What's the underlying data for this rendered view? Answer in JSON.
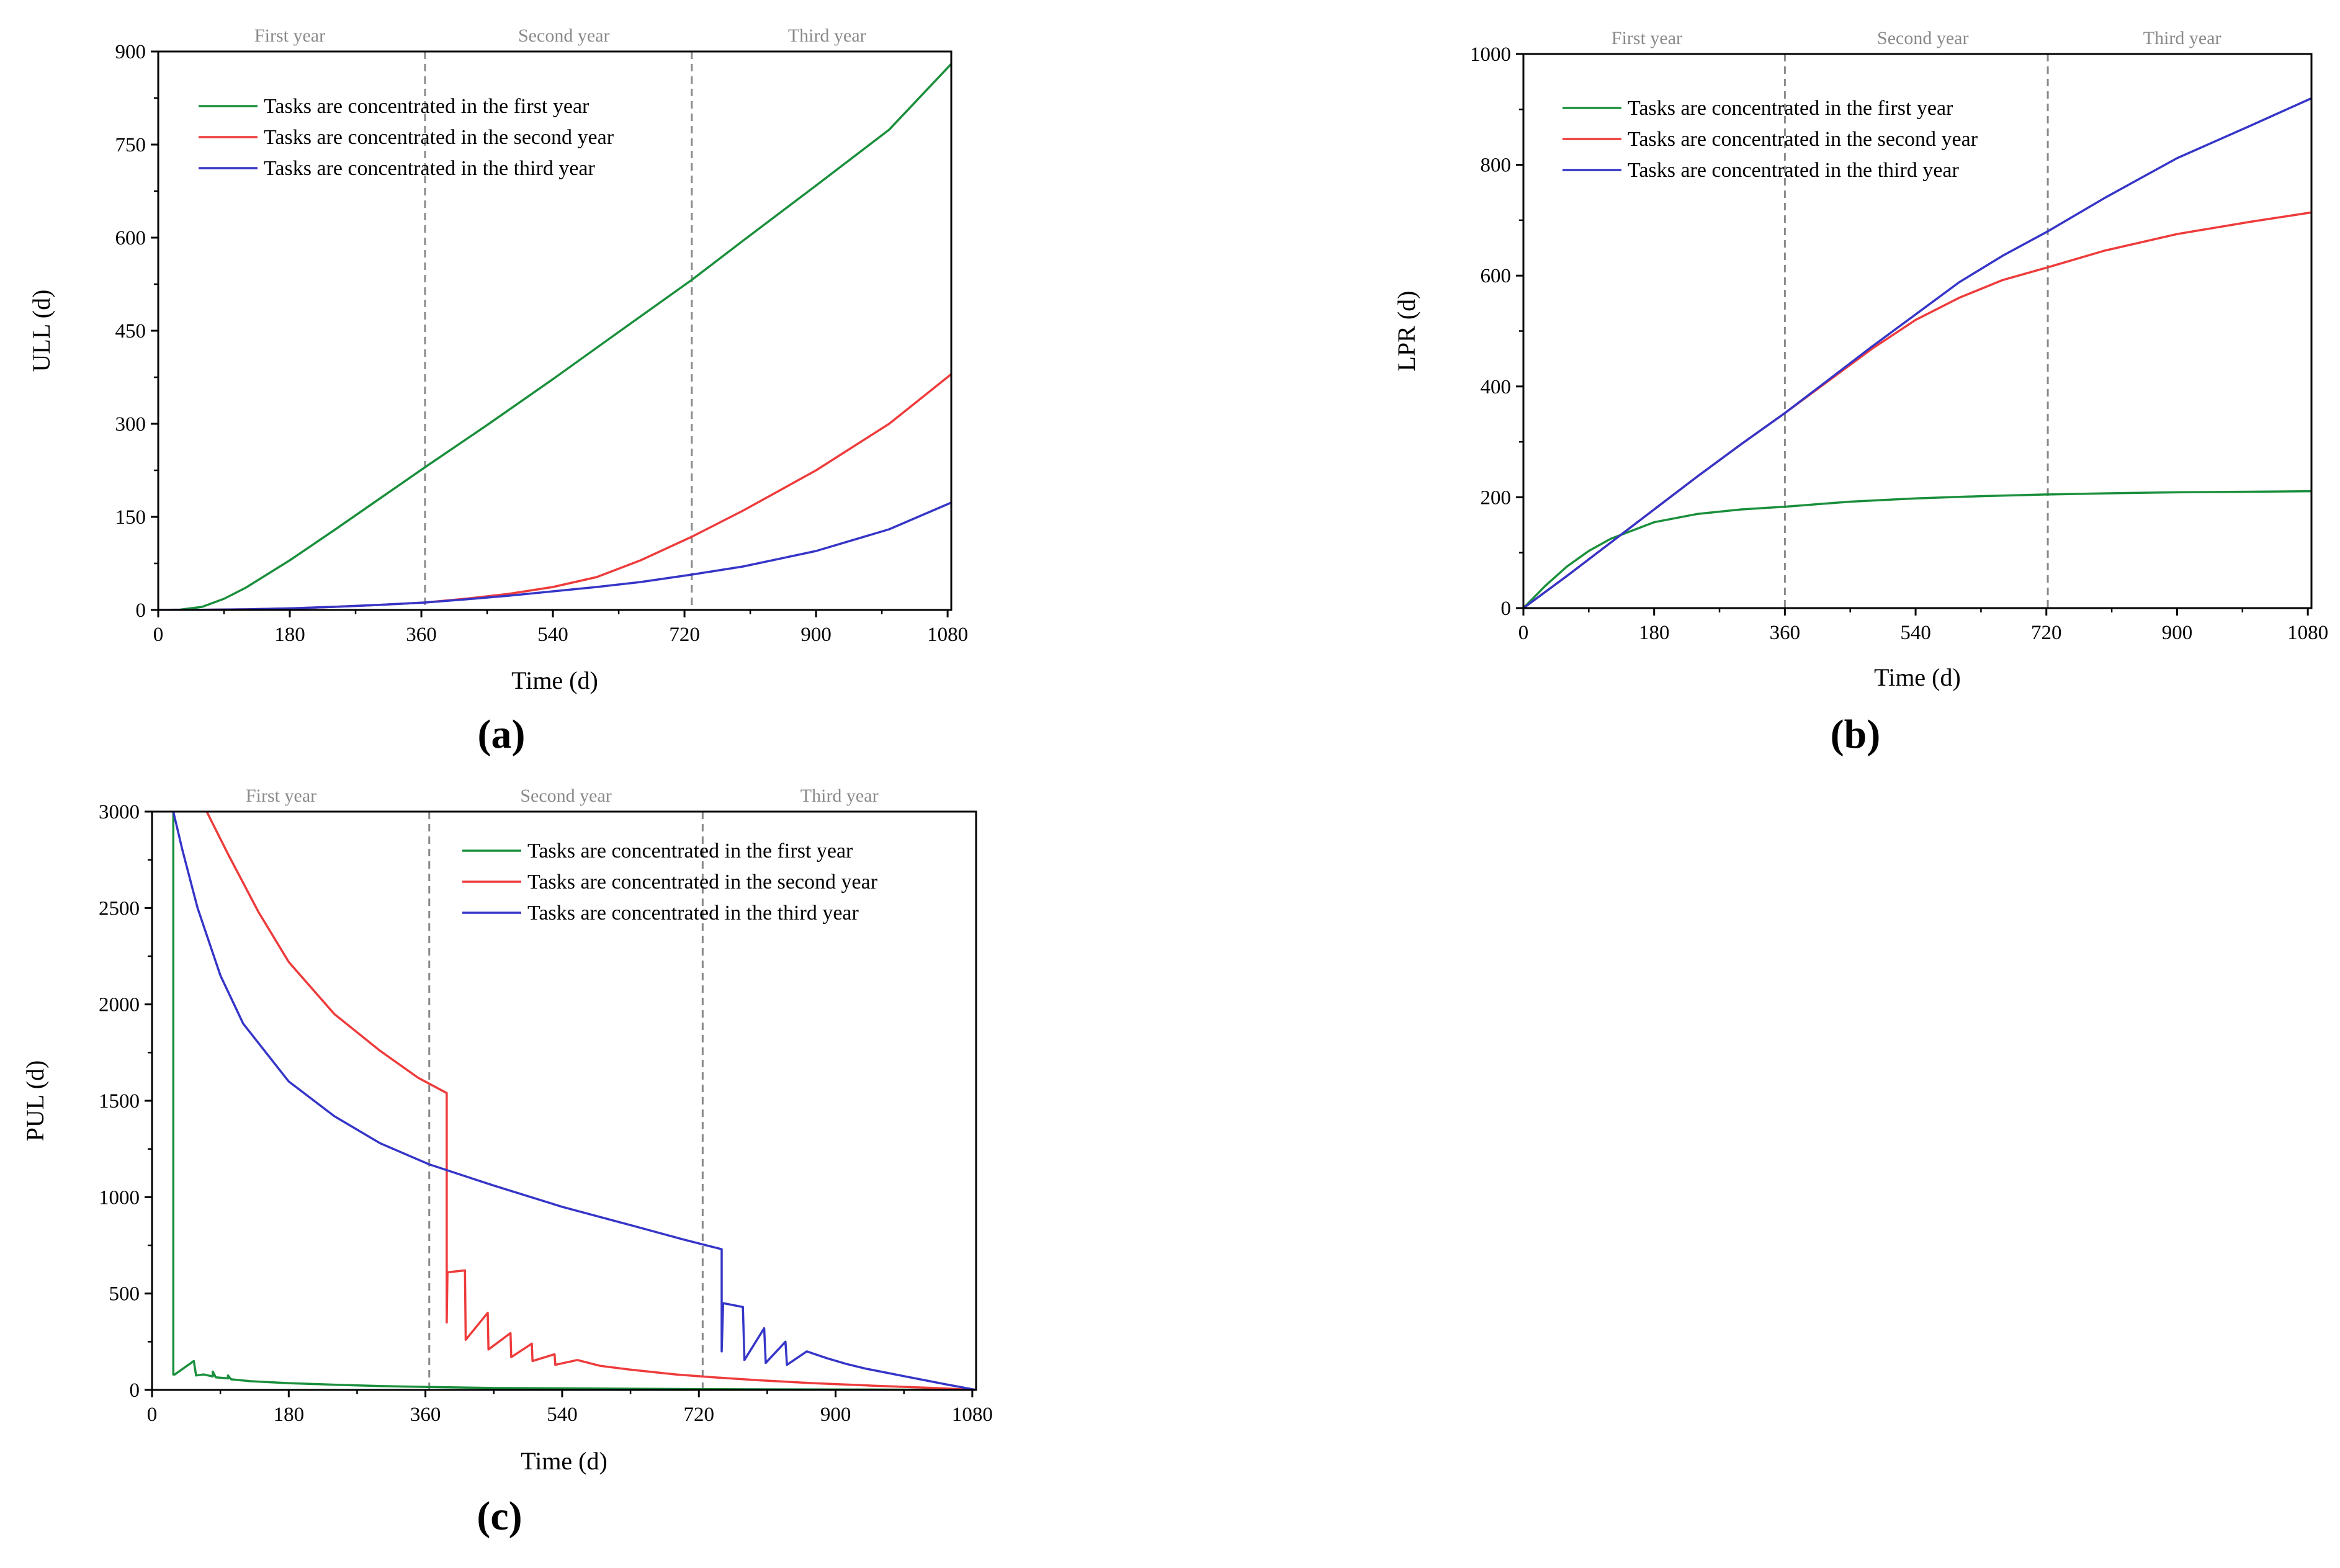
{
  "colors": {
    "series": [
      "#1a8f3c",
      "#ee3b3b",
      "#3535c8"
    ],
    "axis": "#000000",
    "divider": "#8a8a8a",
    "year_label": "#8a8a8a"
  },
  "chart_data": [
    {
      "panel_label": "(a)",
      "type": "line",
      "title": "",
      "xlabel": "Time (d)",
      "ylabel": "ULL (d)",
      "xlim": [
        0,
        1085
      ],
      "ylim": [
        0,
        900
      ],
      "xticks": [
        0,
        180,
        360,
        540,
        720,
        900,
        1080
      ],
      "yticks": [
        0,
        150,
        300,
        450,
        600,
        750,
        900
      ],
      "year_labels": [
        {
          "text": "First year",
          "x": 180
        },
        {
          "text": "Second year",
          "x": 555
        },
        {
          "text": "Third year",
          "x": 915
        }
      ],
      "dividers": [
        365,
        730
      ],
      "legend_position": "top-left",
      "series": [
        {
          "name": "Tasks are concentrated in the first year",
          "x": [
            0,
            30,
            60,
            90,
            120,
            180,
            240,
            300,
            365,
            450,
            540,
            630,
            730,
            800,
            900,
            1000,
            1085
          ],
          "y": [
            0,
            0.5,
            5,
            18,
            36,
            80,
            128,
            177,
            230,
            298,
            372,
            448,
            532,
            595,
            684,
            774,
            880
          ]
        },
        {
          "name": "Tasks are concentrated in the second year",
          "x": [
            0,
            60,
            120,
            180,
            240,
            300,
            365,
            420,
            480,
            540,
            600,
            660,
            730,
            800,
            900,
            1000,
            1085
          ],
          "y": [
            0,
            0.2,
            1,
            2.5,
            5,
            8,
            12,
            18,
            26,
            37,
            53,
            80,
            118,
            160,
            225,
            300,
            380
          ]
        },
        {
          "name": "Tasks are concentrated in the third year",
          "x": [
            0,
            60,
            120,
            180,
            240,
            300,
            365,
            420,
            480,
            540,
            600,
            660,
            730,
            800,
            900,
            1000,
            1085
          ],
          "y": [
            0,
            0.2,
            1,
            2.5,
            5,
            8,
            12,
            17,
            23,
            30,
            37,
            45,
            57,
            70,
            95,
            130,
            173
          ]
        }
      ]
    },
    {
      "panel_label": "(b)",
      "type": "line",
      "title": "",
      "xlabel": "Time (d)",
      "ylabel": "LPR (d)",
      "xlim": [
        0,
        1085
      ],
      "ylim": [
        0,
        1000
      ],
      "xticks": [
        0,
        180,
        360,
        540,
        720,
        900,
        1080
      ],
      "yticks": [
        0,
        200,
        400,
        600,
        800,
        1000
      ],
      "year_labels": [
        {
          "text": "First year",
          "x": 170
        },
        {
          "text": "Second year",
          "x": 550
        },
        {
          "text": "Third year",
          "x": 907
        }
      ],
      "dividers": [
        360,
        722
      ],
      "legend_position": "top-left",
      "series": [
        {
          "name": "Tasks are concentrated in the first year",
          "x": [
            0,
            30,
            60,
            90,
            120,
            180,
            240,
            300,
            360,
            450,
            540,
            630,
            720,
            800,
            900,
            1000,
            1085
          ],
          "y": [
            0,
            40,
            75,
            103,
            125,
            155,
            170,
            178,
            183,
            192,
            198,
            202,
            205,
            207,
            209,
            210,
            211
          ]
        },
        {
          "name": "Tasks are concentrated in the second year",
          "x": [
            0,
            60,
            120,
            180,
            240,
            300,
            360,
            420,
            480,
            540,
            600,
            660,
            722,
            800,
            900,
            1000,
            1085
          ],
          "y": [
            0,
            58,
            118,
            178,
            238,
            296,
            352,
            410,
            468,
            520,
            560,
            592,
            615,
            645,
            675,
            697,
            714
          ]
        },
        {
          "name": "Tasks are concentrated in the third year",
          "x": [
            0,
            60,
            120,
            180,
            240,
            300,
            360,
            420,
            480,
            540,
            600,
            660,
            722,
            800,
            900,
            1000,
            1085
          ],
          "y": [
            0,
            58,
            118,
            178,
            238,
            296,
            352,
            412,
            472,
            530,
            588,
            636,
            680,
            740,
            812,
            870,
            920
          ]
        }
      ]
    },
    {
      "panel_label": "(c)",
      "type": "line",
      "title": "",
      "xlabel": "Time (d)",
      "ylabel": "PUL (d)",
      "xlim": [
        0,
        1085
      ],
      "ylim": [
        0,
        3000
      ],
      "xticks": [
        0,
        180,
        360,
        540,
        720,
        900,
        1080
      ],
      "yticks": [
        0,
        500,
        1000,
        1500,
        2000,
        2500,
        3000
      ],
      "year_labels": [
        {
          "text": "First year",
          "x": 170
        },
        {
          "text": "Second year",
          "x": 545
        },
        {
          "text": "Third year",
          "x": 905
        }
      ],
      "dividers": [
        365,
        725
      ],
      "legend_position": "top-right",
      "series": [
        {
          "name": "Tasks are concentrated in the first year",
          "x": [
            28,
            28,
            30,
            55,
            55,
            58,
            68,
            80,
            80,
            84,
            100,
            100,
            104,
            130,
            180,
            240,
            300,
            365,
            450,
            540,
            630,
            730,
            830,
            930,
            1030,
            1085
          ],
          "y": [
            3000,
            80,
            80,
            150,
            150,
            75,
            80,
            70,
            95,
            65,
            60,
            75,
            55,
            45,
            35,
            27,
            20,
            15,
            10,
            8,
            6,
            4,
            3,
            2,
            1,
            0
          ]
        },
        {
          "name": "Tasks are concentrated in the second year",
          "x": [
            72,
            100,
            140,
            180,
            240,
            300,
            350,
            388,
            388,
            389,
            412,
            413,
            442,
            443,
            472,
            473,
            500,
            501,
            530,
            531,
            560,
            590,
            630,
            690,
            740,
            800,
            870,
            950,
            1030,
            1085
          ],
          "y": [
            3000,
            2780,
            2480,
            2220,
            1950,
            1760,
            1620,
            1540,
            350,
            610,
            620,
            260,
            400,
            210,
            295,
            170,
            240,
            150,
            185,
            130,
            155,
            125,
            105,
            80,
            65,
            50,
            35,
            22,
            10,
            0
          ],
          "steps": true
        },
        {
          "name": "Tasks are concentrated in the third year",
          "x": [
            28,
            40,
            60,
            90,
            120,
            180,
            240,
            300,
            365,
            450,
            540,
            630,
            700,
            750,
            750,
            752,
            778,
            780,
            806,
            808,
            834,
            836,
            862,
            888,
            914,
            940,
            966,
            992,
            1018,
            1044,
            1085
          ],
          "y": [
            3000,
            2800,
            2500,
            2150,
            1900,
            1600,
            1420,
            1280,
            1170,
            1060,
            950,
            855,
            780,
            730,
            200,
            450,
            430,
            155,
            320,
            140,
            250,
            130,
            200,
            165,
            135,
            110,
            90,
            70,
            50,
            30,
            0
          ],
          "steps": true
        }
      ]
    }
  ]
}
